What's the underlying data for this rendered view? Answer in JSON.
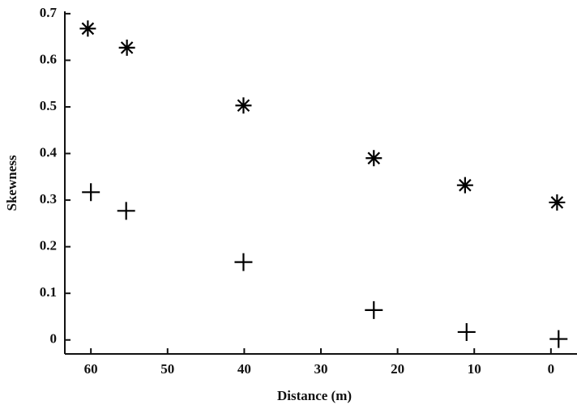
{
  "chart_data": {
    "type": "scatter",
    "xlabel": "Distance (m)",
    "ylabel": "Skewness",
    "series": [
      {
        "marker": "asterisk",
        "color": "#000000",
        "x": [
          60.4,
          55.3,
          40.1,
          23.1,
          11.2,
          -0.8
        ],
        "values": [
          0.668,
          0.627,
          0.503,
          0.39,
          0.332,
          0.295
        ]
      },
      {
        "marker": "plus",
        "color": "#000000",
        "x": [
          60,
          55.4,
          40.1,
          23.1,
          11,
          -1
        ],
        "values": [
          0.317,
          0.277,
          0.167,
          0.064,
          0.017,
          0.002
        ]
      }
    ],
    "xlim": [
      63.4,
      -3.4
    ],
    "xticks": [
      60,
      50,
      40,
      30,
      20,
      10,
      0
    ],
    "ylim": [
      -0.03,
      0.705
    ],
    "yticks": [
      0,
      0.1,
      0.2,
      0.3,
      0.4,
      0.5,
      0.6,
      0.7
    ]
  }
}
